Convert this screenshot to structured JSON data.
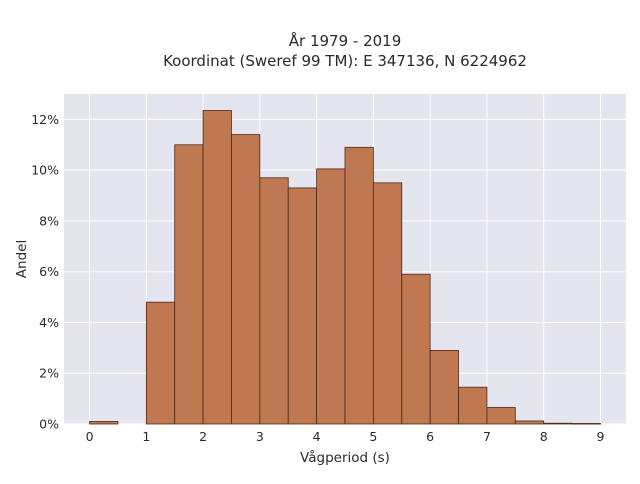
{
  "chart_data": {
    "type": "bar",
    "title": "År 1979 - 2019",
    "subtitle": "Koordinat (Sweref 99 TM): E 347136, N 6224962",
    "xlabel": "Vågperiod (s)",
    "ylabel": "Andel",
    "bin_width": 0.5,
    "bins": [
      {
        "start": 0.0,
        "value": 0.1
      },
      {
        "start": 0.5,
        "value": 0.0
      },
      {
        "start": 1.0,
        "value": 4.8
      },
      {
        "start": 1.5,
        "value": 11.0
      },
      {
        "start": 2.0,
        "value": 12.35
      },
      {
        "start": 2.5,
        "value": 11.4
      },
      {
        "start": 3.0,
        "value": 9.7
      },
      {
        "start": 3.5,
        "value": 9.3
      },
      {
        "start": 4.0,
        "value": 10.05
      },
      {
        "start": 4.5,
        "value": 10.9
      },
      {
        "start": 5.0,
        "value": 9.5
      },
      {
        "start": 5.5,
        "value": 5.9
      },
      {
        "start": 6.0,
        "value": 2.9
      },
      {
        "start": 6.5,
        "value": 1.45
      },
      {
        "start": 7.0,
        "value": 0.65
      },
      {
        "start": 7.5,
        "value": 0.12
      },
      {
        "start": 8.0,
        "value": 0.03
      },
      {
        "start": 8.5,
        "value": 0.02
      }
    ],
    "xlim": [
      -0.45,
      9.45
    ],
    "ylim": [
      0,
      13
    ],
    "x_ticks": [
      {
        "value": 0,
        "label": "0"
      },
      {
        "value": 1,
        "label": "1"
      },
      {
        "value": 2,
        "label": "2"
      },
      {
        "value": 3,
        "label": "3"
      },
      {
        "value": 4,
        "label": "4"
      },
      {
        "value": 5,
        "label": "5"
      },
      {
        "value": 6,
        "label": "6"
      },
      {
        "value": 7,
        "label": "7"
      },
      {
        "value": 8,
        "label": "8"
      },
      {
        "value": 9,
        "label": "9"
      }
    ],
    "y_ticks": [
      {
        "value": 0,
        "label": "0%"
      },
      {
        "value": 2,
        "label": "2%"
      },
      {
        "value": 4,
        "label": "4%"
      },
      {
        "value": 6,
        "label": "6%"
      },
      {
        "value": 8,
        "label": "8%"
      },
      {
        "value": 10,
        "label": "10%"
      },
      {
        "value": 12,
        "label": "12%"
      }
    ],
    "grid": true,
    "legend": "none",
    "colors": {
      "bar_fill": "#c07850",
      "bar_stroke": "#4a2a1a",
      "plot_background": "#e5e5ef",
      "grid": "#ffffff"
    }
  }
}
